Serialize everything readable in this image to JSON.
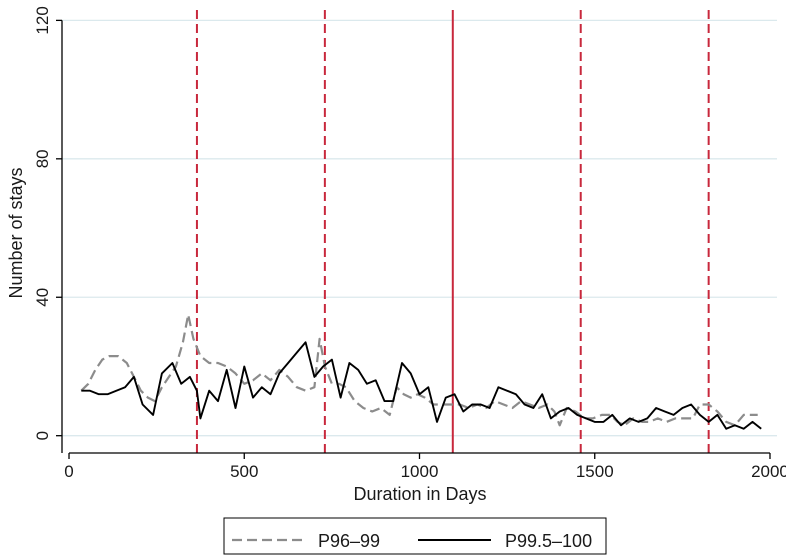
{
  "chart_data": {
    "type": "line",
    "title": "",
    "xlabel": "Duration in Days",
    "ylabel": "Number of stays",
    "xlim": [
      -20,
      2020
    ],
    "ylim": [
      -5,
      123
    ],
    "xticks": [
      0,
      500,
      1000,
      1500,
      2000
    ],
    "xtick_labels": [
      "0",
      "500",
      "1000",
      "1500",
      "2000"
    ],
    "yticks": [
      0,
      40,
      80,
      120
    ],
    "ytick_labels": [
      "0",
      "40",
      "80",
      "120"
    ],
    "grid": "horizontal",
    "legend_position": "bottom",
    "vertical_lines": [
      {
        "x": 365,
        "style": "dashed",
        "color": "#c8283c"
      },
      {
        "x": 730,
        "style": "dashed",
        "color": "#c8283c"
      },
      {
        "x": 1095,
        "style": "solid",
        "color": "#c8283c"
      },
      {
        "x": 1460,
        "style": "dashed",
        "color": "#c8283c"
      },
      {
        "x": 1825,
        "style": "dashed",
        "color": "#c8283c"
      }
    ],
    "series": [
      {
        "name": "P96–99",
        "style": "dashed",
        "color": "#8c8c8c",
        "points": [
          [
            35,
            13
          ],
          [
            55,
            15
          ],
          [
            75,
            19
          ],
          [
            95,
            22
          ],
          [
            115,
            23
          ],
          [
            140,
            23
          ],
          [
            165,
            21
          ],
          [
            185,
            17
          ],
          [
            205,
            13
          ],
          [
            225,
            11
          ],
          [
            245,
            10
          ],
          [
            265,
            14
          ],
          [
            285,
            17
          ],
          [
            305,
            20
          ],
          [
            325,
            27
          ],
          [
            340,
            35
          ],
          [
            355,
            28
          ],
          [
            375,
            23
          ],
          [
            400,
            21
          ],
          [
            425,
            21
          ],
          [
            450,
            20
          ],
          [
            475,
            18
          ],
          [
            500,
            15
          ],
          [
            525,
            16
          ],
          [
            550,
            18
          ],
          [
            575,
            16
          ],
          [
            600,
            19
          ],
          [
            625,
            17
          ],
          [
            650,
            14
          ],
          [
            675,
            13
          ],
          [
            700,
            14
          ],
          [
            715,
            28
          ],
          [
            730,
            20
          ],
          [
            750,
            15
          ],
          [
            770,
            15
          ],
          [
            790,
            14
          ],
          [
            815,
            10
          ],
          [
            840,
            8
          ],
          [
            865,
            7
          ],
          [
            890,
            8
          ],
          [
            915,
            6
          ],
          [
            935,
            14
          ],
          [
            955,
            12
          ],
          [
            975,
            11
          ],
          [
            995,
            12
          ],
          [
            1015,
            11
          ],
          [
            1040,
            9
          ],
          [
            1065,
            9
          ],
          [
            1090,
            9
          ],
          [
            1115,
            9
          ],
          [
            1140,
            8
          ],
          [
            1165,
            9
          ],
          [
            1190,
            8
          ],
          [
            1215,
            10
          ],
          [
            1240,
            9
          ],
          [
            1265,
            8
          ],
          [
            1290,
            10
          ],
          [
            1315,
            9
          ],
          [
            1340,
            8
          ],
          [
            1365,
            9
          ],
          [
            1385,
            7
          ],
          [
            1400,
            3
          ],
          [
            1420,
            8
          ],
          [
            1445,
            7
          ],
          [
            1470,
            5
          ],
          [
            1495,
            5
          ],
          [
            1520,
            6
          ],
          [
            1545,
            6
          ],
          [
            1565,
            4
          ],
          [
            1585,
            3
          ],
          [
            1610,
            5
          ],
          [
            1635,
            4
          ],
          [
            1655,
            4
          ],
          [
            1680,
            5
          ],
          [
            1705,
            4
          ],
          [
            1730,
            5
          ],
          [
            1755,
            5
          ],
          [
            1780,
            5
          ],
          [
            1800,
            9
          ],
          [
            1825,
            9
          ],
          [
            1850,
            7
          ],
          [
            1875,
            4
          ],
          [
            1900,
            3
          ],
          [
            1925,
            6
          ],
          [
            1945,
            6
          ],
          [
            1965,
            6
          ]
        ]
      },
      {
        "name": "P99.5–100",
        "style": "solid",
        "color": "#000000",
        "points": [
          [
            35,
            13
          ],
          [
            60,
            13
          ],
          [
            85,
            12
          ],
          [
            110,
            12
          ],
          [
            135,
            13
          ],
          [
            160,
            14
          ],
          [
            185,
            17
          ],
          [
            210,
            9
          ],
          [
            240,
            6
          ],
          [
            265,
            18
          ],
          [
            295,
            21
          ],
          [
            320,
            15
          ],
          [
            345,
            17
          ],
          [
            365,
            13
          ],
          [
            375,
            5
          ],
          [
            400,
            13
          ],
          [
            425,
            10
          ],
          [
            450,
            19
          ],
          [
            475,
            8
          ],
          [
            500,
            20
          ],
          [
            525,
            11
          ],
          [
            550,
            14
          ],
          [
            575,
            12
          ],
          [
            600,
            18
          ],
          [
            625,
            21
          ],
          [
            650,
            24
          ],
          [
            675,
            27
          ],
          [
            700,
            17
          ],
          [
            725,
            20
          ],
          [
            750,
            22
          ],
          [
            775,
            11
          ],
          [
            800,
            21
          ],
          [
            825,
            19
          ],
          [
            850,
            15
          ],
          [
            875,
            16
          ],
          [
            900,
            10
          ],
          [
            925,
            10
          ],
          [
            950,
            21
          ],
          [
            975,
            18
          ],
          [
            1000,
            12
          ],
          [
            1025,
            14
          ],
          [
            1050,
            4
          ],
          [
            1075,
            11
          ],
          [
            1100,
            12
          ],
          [
            1125,
            7
          ],
          [
            1150,
            9
          ],
          [
            1175,
            9
          ],
          [
            1200,
            8
          ],
          [
            1225,
            14
          ],
          [
            1250,
            13
          ],
          [
            1275,
            12
          ],
          [
            1300,
            9
          ],
          [
            1325,
            8
          ],
          [
            1350,
            12
          ],
          [
            1375,
            5
          ],
          [
            1400,
            7
          ],
          [
            1425,
            8
          ],
          [
            1450,
            6
          ],
          [
            1475,
            5
          ],
          [
            1500,
            4
          ],
          [
            1525,
            4
          ],
          [
            1550,
            6
          ],
          [
            1575,
            3
          ],
          [
            1600,
            5
          ],
          [
            1625,
            4
          ],
          [
            1650,
            5
          ],
          [
            1675,
            8
          ],
          [
            1700,
            7
          ],
          [
            1725,
            6
          ],
          [
            1750,
            8
          ],
          [
            1775,
            9
          ],
          [
            1800,
            6
          ],
          [
            1825,
            4
          ],
          [
            1850,
            6
          ],
          [
            1875,
            2
          ],
          [
            1900,
            3
          ],
          [
            1925,
            2
          ],
          [
            1950,
            4
          ],
          [
            1975,
            2
          ]
        ]
      }
    ]
  }
}
